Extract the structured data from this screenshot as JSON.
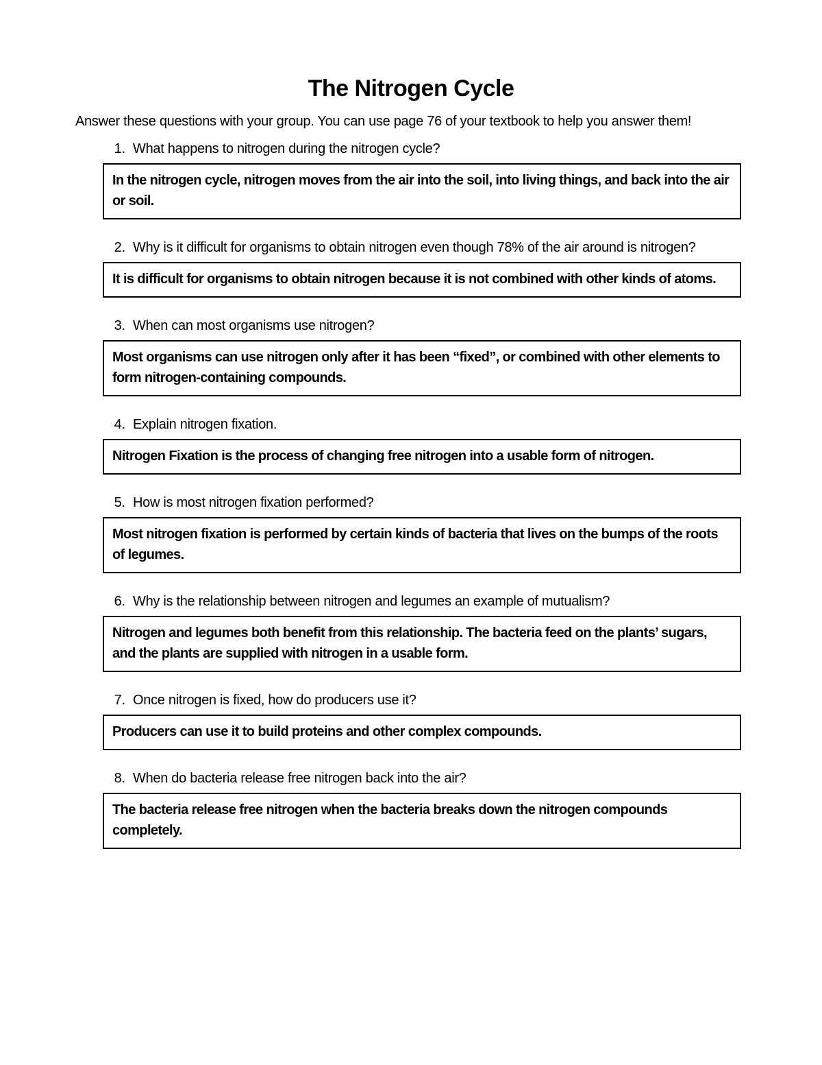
{
  "title": "The  Nitrogen Cycle",
  "instructions": "Answer these questions with your group.  You can use page 76 of your textbook to help you answer them!",
  "questions": [
    {
      "q": "What happens to nitrogen during the nitrogen cycle?",
      "a": "In the nitrogen cycle, nitrogen moves from the air into the soil, into living things, and back into the air or soil."
    },
    {
      "q": "Why is it difficult for organisms to obtain nitrogen even though 78% of the air around is nitrogen?",
      "a": "It is difficult for organisms to obtain nitrogen because it is not combined with other kinds of atoms."
    },
    {
      "q": "When can most organisms use nitrogen?",
      "a": "Most organisms can use nitrogen only after it has been “fixed”, or combined with other elements to form nitrogen-containing compounds."
    },
    {
      "q": "Explain nitrogen fixation.",
      "a": "Nitrogen  Fixation is the process of changing free nitrogen into a usable form of nitrogen."
    },
    {
      "q": "How is most nitrogen fixation performed?",
      "a": "Most nitrogen fixation is performed by certain kinds of bacteria that lives on the bumps of the roots of legumes."
    },
    {
      "q": "Why is the relationship between nitrogen and legumes an example of mutualism?",
      "a": "Nitrogen and legumes both benefit from this relationship. The bacteria feed on the plants’ sugars, and the plants are supplied with nitrogen in a usable form."
    },
    {
      "q": "Once nitrogen is fixed, how do producers use it?",
      "a": "Producers can use it to build proteins and other complex compounds."
    },
    {
      "q": "When do bacteria release free nitrogen back into the air?",
      "a": "The bacteria release free nitrogen when the bacteria breaks down the nitrogen compounds completely."
    }
  ],
  "colors": {
    "background": "#ffffff",
    "text": "#000000",
    "border": "#000000"
  }
}
